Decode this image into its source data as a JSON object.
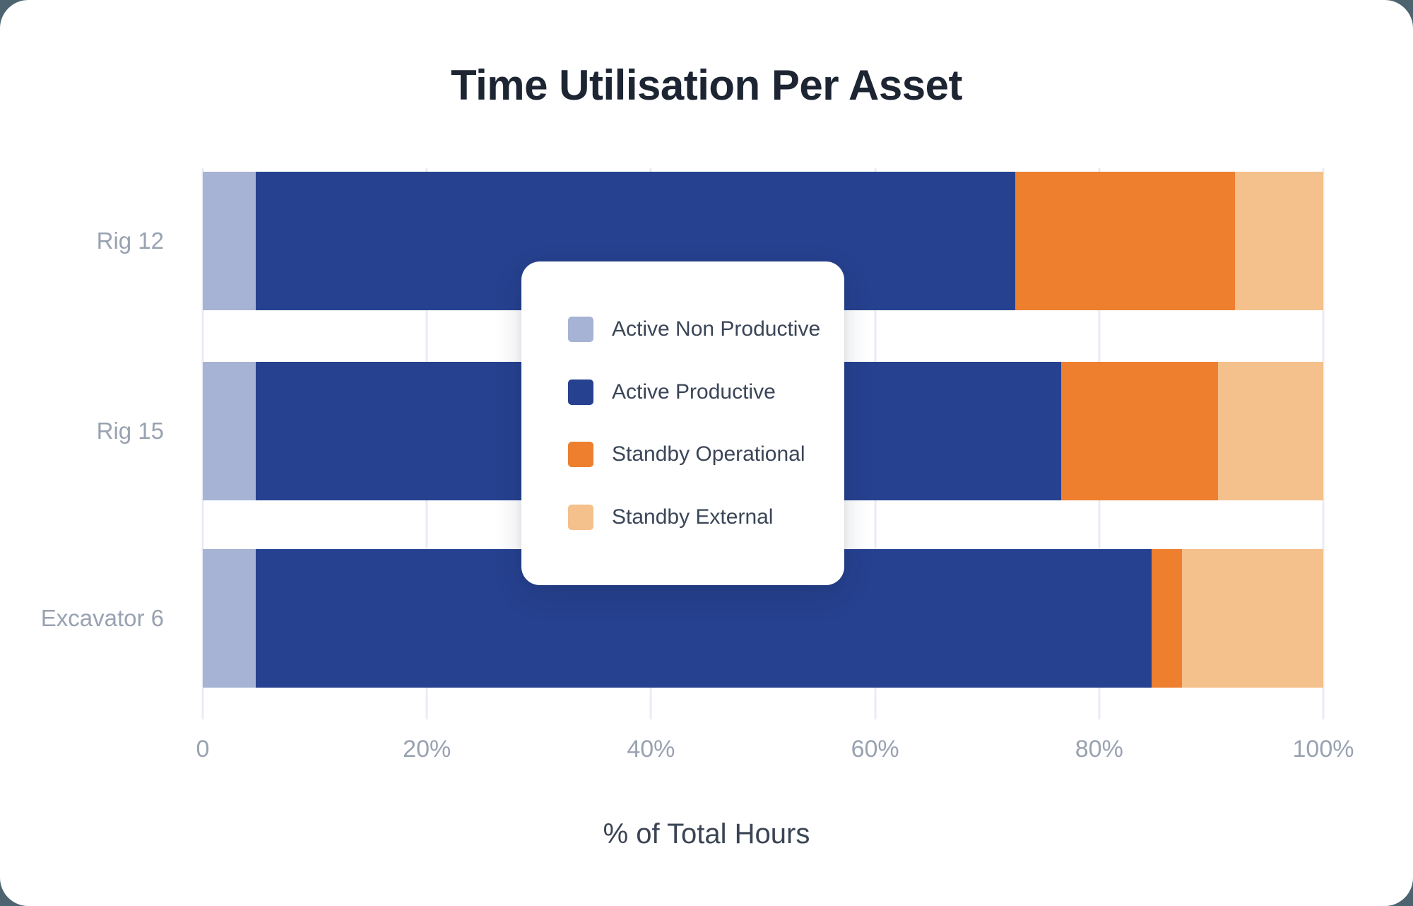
{
  "page": {
    "background_color": "#4D6470",
    "card_color": "#FFFFFF"
  },
  "chart_data": {
    "type": "bar",
    "orientation": "horizontal",
    "stacked": true,
    "title": "Time Utilisation Per Asset",
    "xlabel": "% of Total Hours",
    "categories": [
      "Rig 12",
      "Rig 15",
      "Excavator 6"
    ],
    "series": [
      {
        "name": "Active Non Productive",
        "color": "#A6B3D5",
        "values": [
          4.7,
          4.7,
          4.7
        ]
      },
      {
        "name": "Active Productive",
        "color": "#26418F",
        "values": [
          67.8,
          71.9,
          80.0
        ]
      },
      {
        "name": "Standby Operational",
        "color": "#ED7F2F",
        "values": [
          19.6,
          14.0,
          2.7
        ]
      },
      {
        "name": "Standby External",
        "color": "#F4C08C",
        "values": [
          7.9,
          9.4,
          12.6
        ]
      }
    ],
    "x_ticks": [
      {
        "label": "0",
        "value": 0
      },
      {
        "label": "20%",
        "value": 20
      },
      {
        "label": "40%",
        "value": 40
      },
      {
        "label": "60%",
        "value": 60
      },
      {
        "label": "80%",
        "value": 80
      },
      {
        "label": "100%",
        "value": 100
      }
    ],
    "xlim": [
      0,
      100
    ],
    "grid": true,
    "gridline_color": "#E9ECF4",
    "legend_position": "overlay-center"
  }
}
